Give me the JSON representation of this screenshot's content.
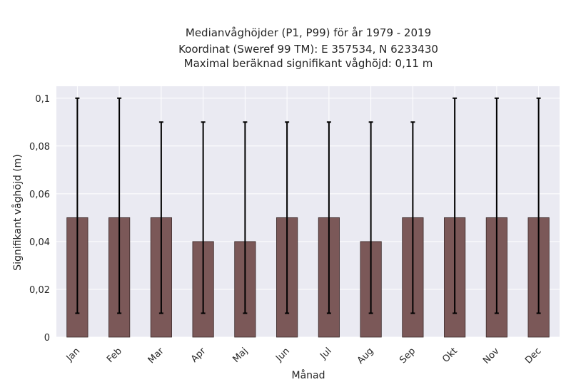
{
  "chart_data": {
    "type": "bar",
    "title_lines": [
      "Medianvåghöjder (P1, P99) för år 1979 - 2019",
      "Koordinat (Sweref 99 TM): E 357534, N 6233430",
      "Maximal beräknad signifikant våghöjd: 0,11 m"
    ],
    "xlabel": "Månad",
    "ylabel": "Signifikant våghöjd (m)",
    "categories": [
      "Jan",
      "Feb",
      "Mar",
      "Apr",
      "Maj",
      "Jun",
      "Jul",
      "Aug",
      "Sep",
      "Okt",
      "Nov",
      "Dec"
    ],
    "values": [
      0.05,
      0.05,
      0.05,
      0.04,
      0.04,
      0.05,
      0.05,
      0.04,
      0.05,
      0.05,
      0.05,
      0.05
    ],
    "error_low": [
      0.01,
      0.01,
      0.01,
      0.01,
      0.01,
      0.01,
      0.01,
      0.01,
      0.01,
      0.01,
      0.01,
      0.01
    ],
    "error_high": [
      0.1,
      0.1,
      0.09,
      0.09,
      0.09,
      0.09,
      0.09,
      0.09,
      0.09,
      0.1,
      0.1,
      0.1
    ],
    "ylim": [
      0,
      0.105
    ],
    "yticks": [
      0,
      0.02,
      0.04,
      0.06,
      0.08,
      0.1
    ],
    "ytick_labels": [
      "0",
      "0,02",
      "0,04",
      "0,06",
      "0,08",
      "0,1"
    ],
    "grid": true,
    "colors": {
      "bar": "#7b5858",
      "bar_edge": "#3b2a2a",
      "error": "#000000",
      "plot_bg": "#eaeaf2",
      "grid": "#ffffff"
    }
  }
}
